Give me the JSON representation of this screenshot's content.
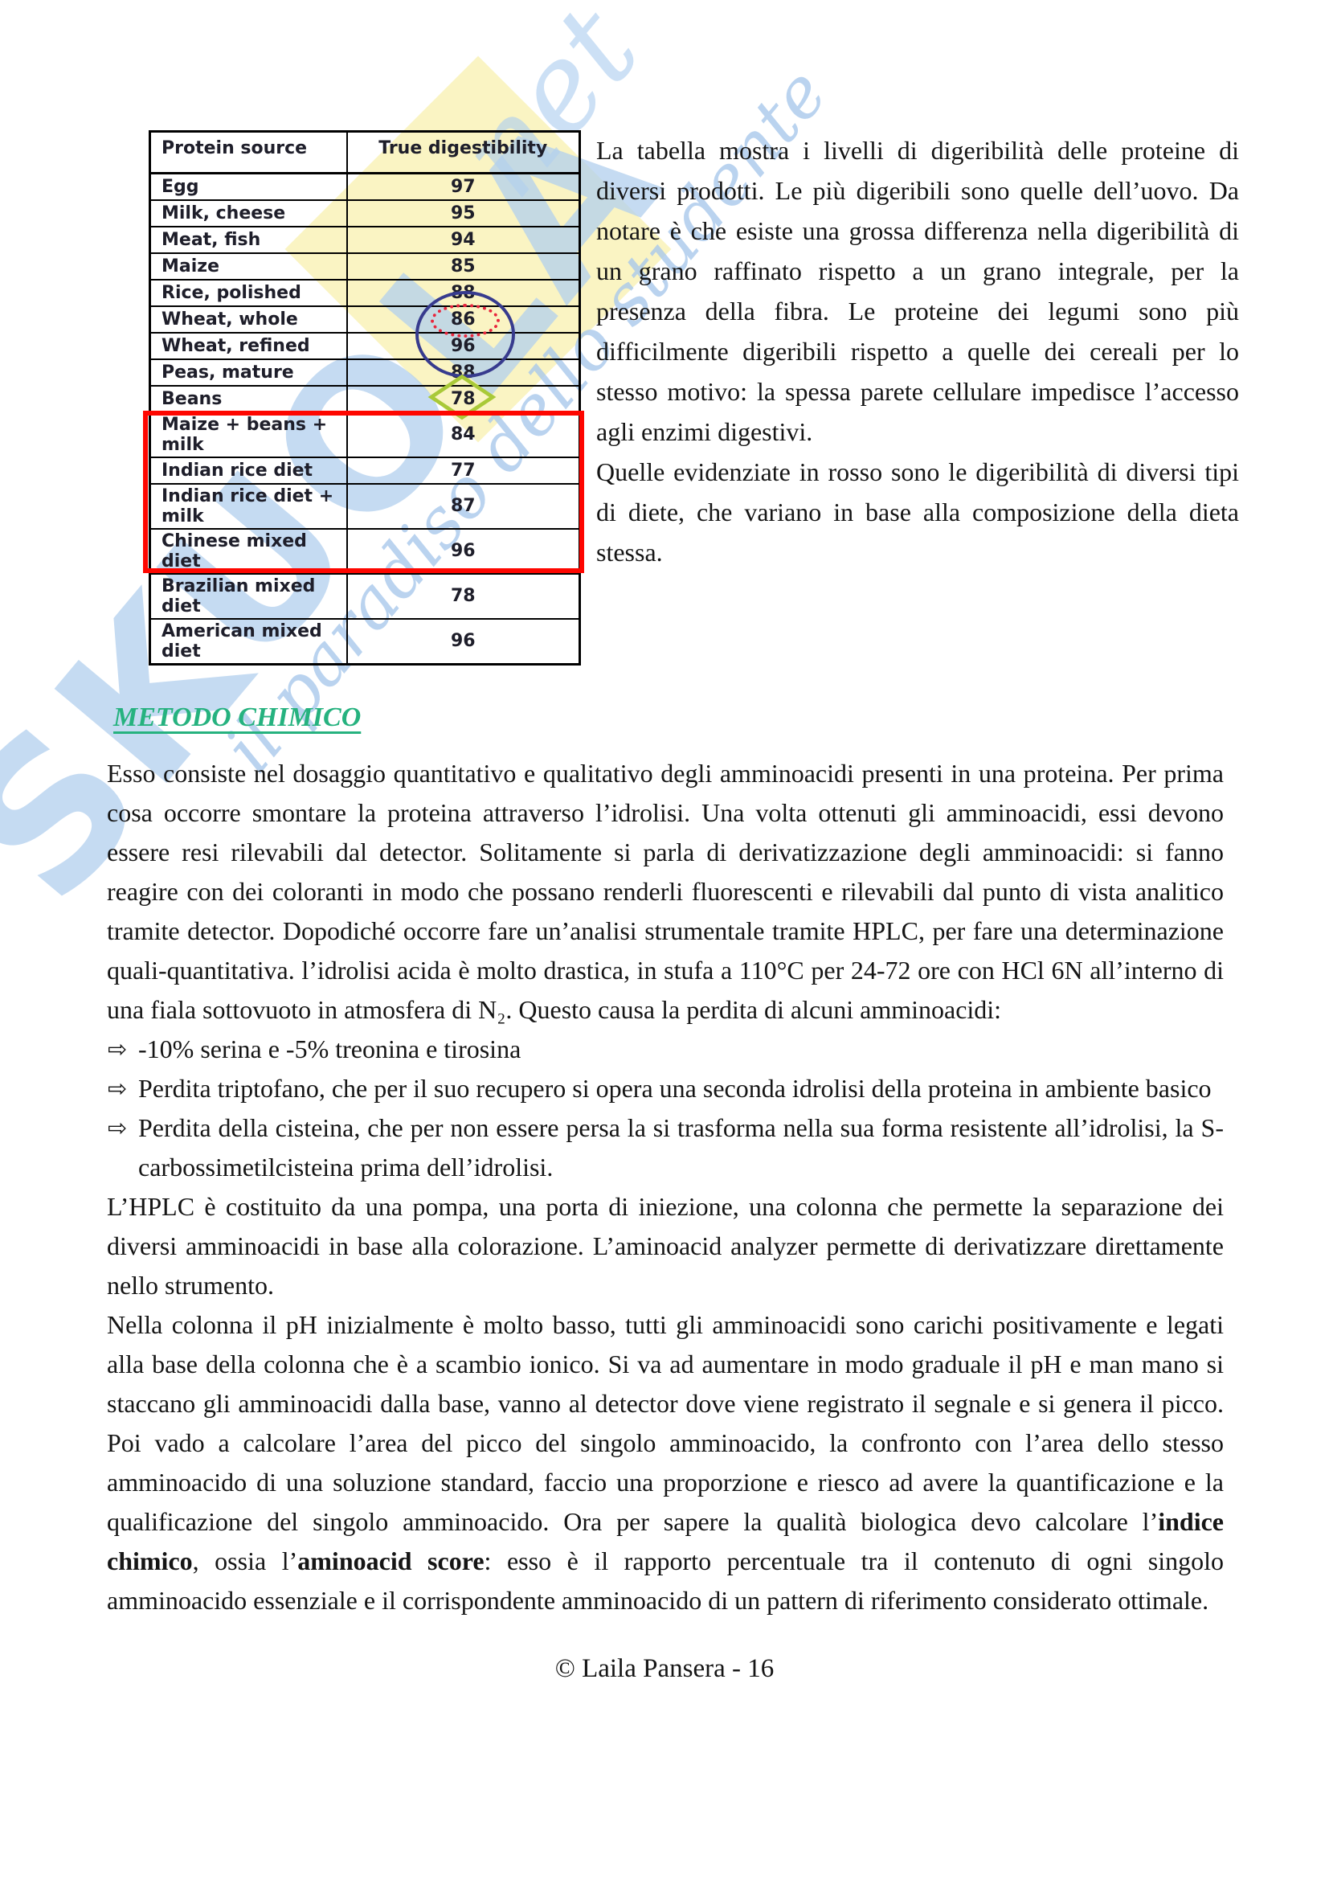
{
  "watermark": {
    "big_text": "SKUOLA",
    "net_text": "net",
    "script_text": "il paradiso dello studente",
    "blue_color": "#b2d0ee",
    "yellow_color": "#faf3c0"
  },
  "table": {
    "headers": {
      "protein_source": "Protein source",
      "true_digestibility": "True digestibility"
    },
    "rows": [
      {
        "label": "Egg",
        "value": "97"
      },
      {
        "label": "Milk, cheese",
        "value": "95"
      },
      {
        "label": "Meat, fish",
        "value": "94"
      },
      {
        "label": "Maize",
        "value": "85"
      },
      {
        "label": "Rice, polished",
        "value": "88"
      },
      {
        "label": "Wheat, whole",
        "value": "86"
      },
      {
        "label": "Wheat, refined",
        "value": "96"
      },
      {
        "label": "Peas, mature",
        "value": "88"
      },
      {
        "label": "Beans",
        "value": "78"
      },
      {
        "label": "Maize + beans + milk",
        "value": "84"
      },
      {
        "label": "Indian rice diet",
        "value": "77"
      },
      {
        "label": "Indian rice diet + milk",
        "value": "87"
      },
      {
        "label": "Chinese mixed diet",
        "value": "96"
      },
      {
        "label": "Brazilian mixed diet",
        "value": "78"
      },
      {
        "label": "American mixed diet",
        "value": "96"
      }
    ],
    "annotations": {
      "red_box_color": "#fe0600",
      "red_box_rows": [
        "Maize + beans + milk",
        "Indian rice diet",
        "Indian rice diet + milk",
        "Chinese mixed diet",
        "Brazilian mixed diet",
        "American mixed diet"
      ],
      "blue_circle_color": "#373b8e",
      "blue_circle_values": [
        "86",
        "96"
      ],
      "red_dotted_color": "#e8253c",
      "red_dotted_value": "86",
      "green_diamond_color": "#a9c938",
      "green_diamond_value": "78"
    }
  },
  "side_text": {
    "p1": "La tabella mostra i livelli di digeribilità delle proteine di diversi prodotti. Le più digeribili sono quelle dell’uovo. Da notare è che esiste una grossa differenza nella digeribilità di un grano raffinato rispetto a un grano integrale, per la presenza della fibra. Le proteine dei legumi sono più difficilmente digeribili rispetto a quelle dei cereali per lo stesso motivo: la spessa parete cellulare impedisce l’accesso agli enzimi digestivi.",
    "p2": "Quelle evidenziate in rosso sono le digeribilità di diversi tipi di diete, che variano in base alla composizione della dieta stessa."
  },
  "section": {
    "heading": "METODO CHIMICO",
    "heading_color": "#26b27f",
    "p1": "Esso consiste nel dosaggio quantitativo e qualitativo degli amminoacidi presenti in una proteina. Per prima cosa occorre smontare la proteina attraverso l’idrolisi. Una volta ottenuti gli amminoacidi, essi devono essere resi rilevabili dal detector. Solitamente si parla di derivatizzazione degli amminoacidi: si fanno reagire con dei coloranti in modo che possano renderli fluorescenti e rilevabili dal punto di vista analitico tramite detector. Dopodiché occorre fare un’analisi strumentale tramite HPLC, per fare una determinazione quali-quantitativa. l’idrolisi acida è molto drastica, in stufa a 110°C per 24-72 ore con HCl 6N all’interno di una fiala sottovuoto in atmosfera di N₂. Questo causa la perdita di alcuni amminoacidi:",
    "bullet_icon": "⇨",
    "bullets": [
      "-10% serina e -5% treonina e tirosina",
      "Perdita triptofano, che per il suo recupero si opera una seconda idrolisi della proteina in ambiente basico",
      "Perdita della cisteina, che per non essere persa la si trasforma nella sua forma resistente all’idrolisi, la S-carbossimetilcisteina prima dell’idrolisi."
    ],
    "p3": "L’HPLC è costituito da una pompa, una porta di iniezione, una colonna che permette la separazione dei diversi amminoacidi in base alla colorazione. L’aminoacid analyzer permette di derivatizzare direttamente nello strumento.",
    "p4": {
      "part1": "Nella colonna il pH inizialmente è molto basso, tutti gli amminoacidi sono carichi positivamente e legati alla base della colonna che è a scambio ionico. Si va ad aumentare in modo graduale il pH e man mano si staccano gli amminoacidi dalla base, vanno al detector dove viene registrato il segnale e si genera il picco. Poi vado a calcolare l’area del picco del singolo amminoacido, la confronto con l’area dello stesso amminoacido di una soluzione standard, faccio una proporzione e riesco ad avere la quantificazione e la qualificazione del singolo amminoacido. Ora per sapere la qualità biologica devo calcolare l’",
      "bold1": "indice chimico",
      "part2": ", ossia l’",
      "bold2": "aminoacid score",
      "part3": ": esso è il rapporto percentuale tra il contenuto di ogni singolo amminoacido essenziale e il corrispondente amminoacido di un pattern di riferimento considerato ottimale."
    }
  },
  "footer": {
    "text": "© Laila Pansera - 16"
  }
}
